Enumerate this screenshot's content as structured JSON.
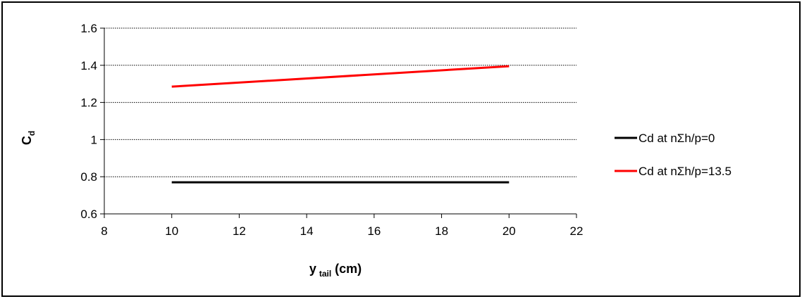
{
  "chart_data": {
    "type": "line",
    "title": "",
    "xlabel": {
      "main": "y",
      "sub": "tail",
      "suffix": " (cm)"
    },
    "ylabel": {
      "main": "C",
      "sub": "d"
    },
    "xlim": [
      8,
      22
    ],
    "ylim": [
      0.6,
      1.6
    ],
    "xticks": [
      8,
      10,
      12,
      14,
      16,
      18,
      20,
      22
    ],
    "yticks": [
      0.6,
      0.8,
      1,
      1.2,
      1.4,
      1.6
    ],
    "xtick_labels": [
      "8",
      "10",
      "12",
      "14",
      "16",
      "18",
      "20",
      "22"
    ],
    "ytick_labels": [
      "0.6",
      "0.8",
      "1",
      "1.2",
      "1.4",
      "1.6"
    ],
    "grid": {
      "horizontal": true,
      "vertical": false,
      "style": "dotted"
    },
    "legend_position": "right",
    "series": [
      {
        "name": "Cd at nΣh/p=0",
        "color": "#000000",
        "x": [
          10,
          20
        ],
        "y": [
          0.77,
          0.77
        ]
      },
      {
        "name": "Cd at nΣh/p=13.5",
        "color": "#ff0000",
        "x": [
          10,
          20
        ],
        "y": [
          1.285,
          1.395
        ]
      }
    ]
  }
}
